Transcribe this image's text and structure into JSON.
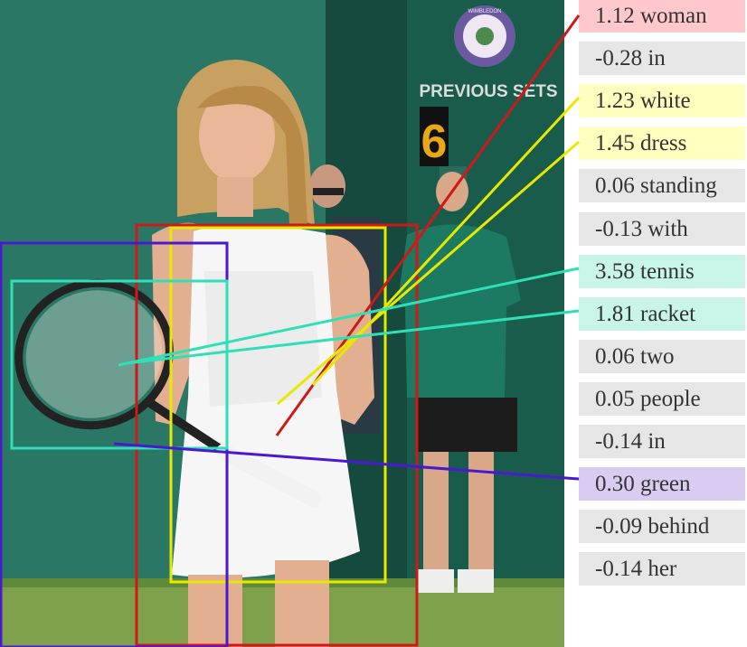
{
  "photo": {
    "scoreboard_text": "PREVIOUS SETS",
    "scoreboard_digit": "6",
    "emblem_text": "WIMBLEDON"
  },
  "words": [
    {
      "score": "1.12",
      "token": "woman",
      "color": "#ffc8cc"
    },
    {
      "score": "-0.28",
      "token": "in",
      "color": "#e6e6e6"
    },
    {
      "score": "1.23",
      "token": "white",
      "color": "#ffffc0"
    },
    {
      "score": "1.45",
      "token": "dress",
      "color": "#ffffc0"
    },
    {
      "score": "0.06",
      "token": "standing",
      "color": "#e6e6e6"
    },
    {
      "score": "-0.13",
      "token": "with",
      "color": "#e6e6e6"
    },
    {
      "score": "3.58",
      "token": "tennis",
      "color": "#c8f5e8"
    },
    {
      "score": "1.81",
      "token": "racket",
      "color": "#c8f5e8"
    },
    {
      "score": "0.06",
      "token": "two",
      "color": "#e6e6e6"
    },
    {
      "score": "0.05",
      "token": "people",
      "color": "#e6e6e6"
    },
    {
      "score": "-0.14",
      "token": "in",
      "color": "#e6e6e6"
    },
    {
      "score": "0.30",
      "token": "green",
      "color": "#d9ccf0"
    },
    {
      "score": "-0.09",
      "token": "behind",
      "color": "#e6e6e6"
    },
    {
      "score": "-0.14",
      "token": "her",
      "color": "#e6e6e6"
    }
  ],
  "colors": {
    "woman": "#d01818",
    "white_dress": "#e8e800",
    "tennis_racket": "#2ee0b8",
    "green": "#4a18d0"
  }
}
